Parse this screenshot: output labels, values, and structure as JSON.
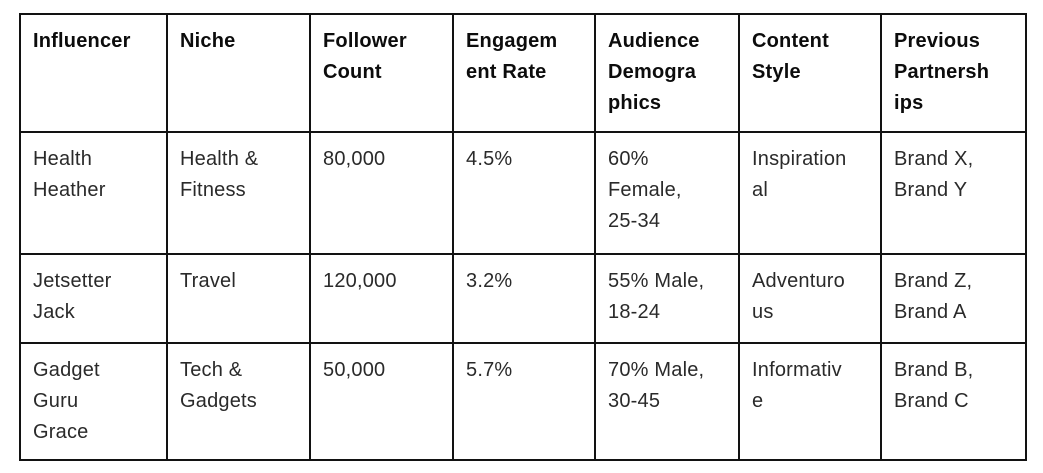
{
  "table": {
    "headers": [
      "Influencer",
      "Niche",
      "Follower\nCount",
      "Engagem\nent Rate",
      "Audience\nDemogra\nphics",
      "Content\nStyle",
      "Previous\nPartnersh\nips"
    ],
    "rows": [
      {
        "influencer": "Health\nHeather",
        "niche": "Health &\nFitness",
        "follower_count": "80,000",
        "engagement_rate": "4.5%",
        "audience_demographics": "60%\nFemale,\n25-34",
        "content_style": "Inspiration\nal",
        "previous_partnerships": "Brand X,\nBrand Y"
      },
      {
        "influencer": "Jetsetter\nJack",
        "niche": "Travel",
        "follower_count": "120,000",
        "engagement_rate": "3.2%",
        "audience_demographics": "55% Male,\n18-24",
        "content_style": "Adventuro\nus",
        "previous_partnerships": "Brand Z,\nBrand A"
      },
      {
        "influencer": "Gadget\nGuru\nGrace",
        "niche": "Tech &\nGadgets",
        "follower_count": "50,000",
        "engagement_rate": "5.7%",
        "audience_demographics": "70% Male,\n30-45",
        "content_style": "Informativ\ne",
        "previous_partnerships": "Brand B,\nBrand C"
      }
    ]
  },
  "colors": {
    "border": "#121212",
    "header_text": "#0c0c0c",
    "body_text": "#2a2a2a",
    "background": "#ffffff"
  }
}
